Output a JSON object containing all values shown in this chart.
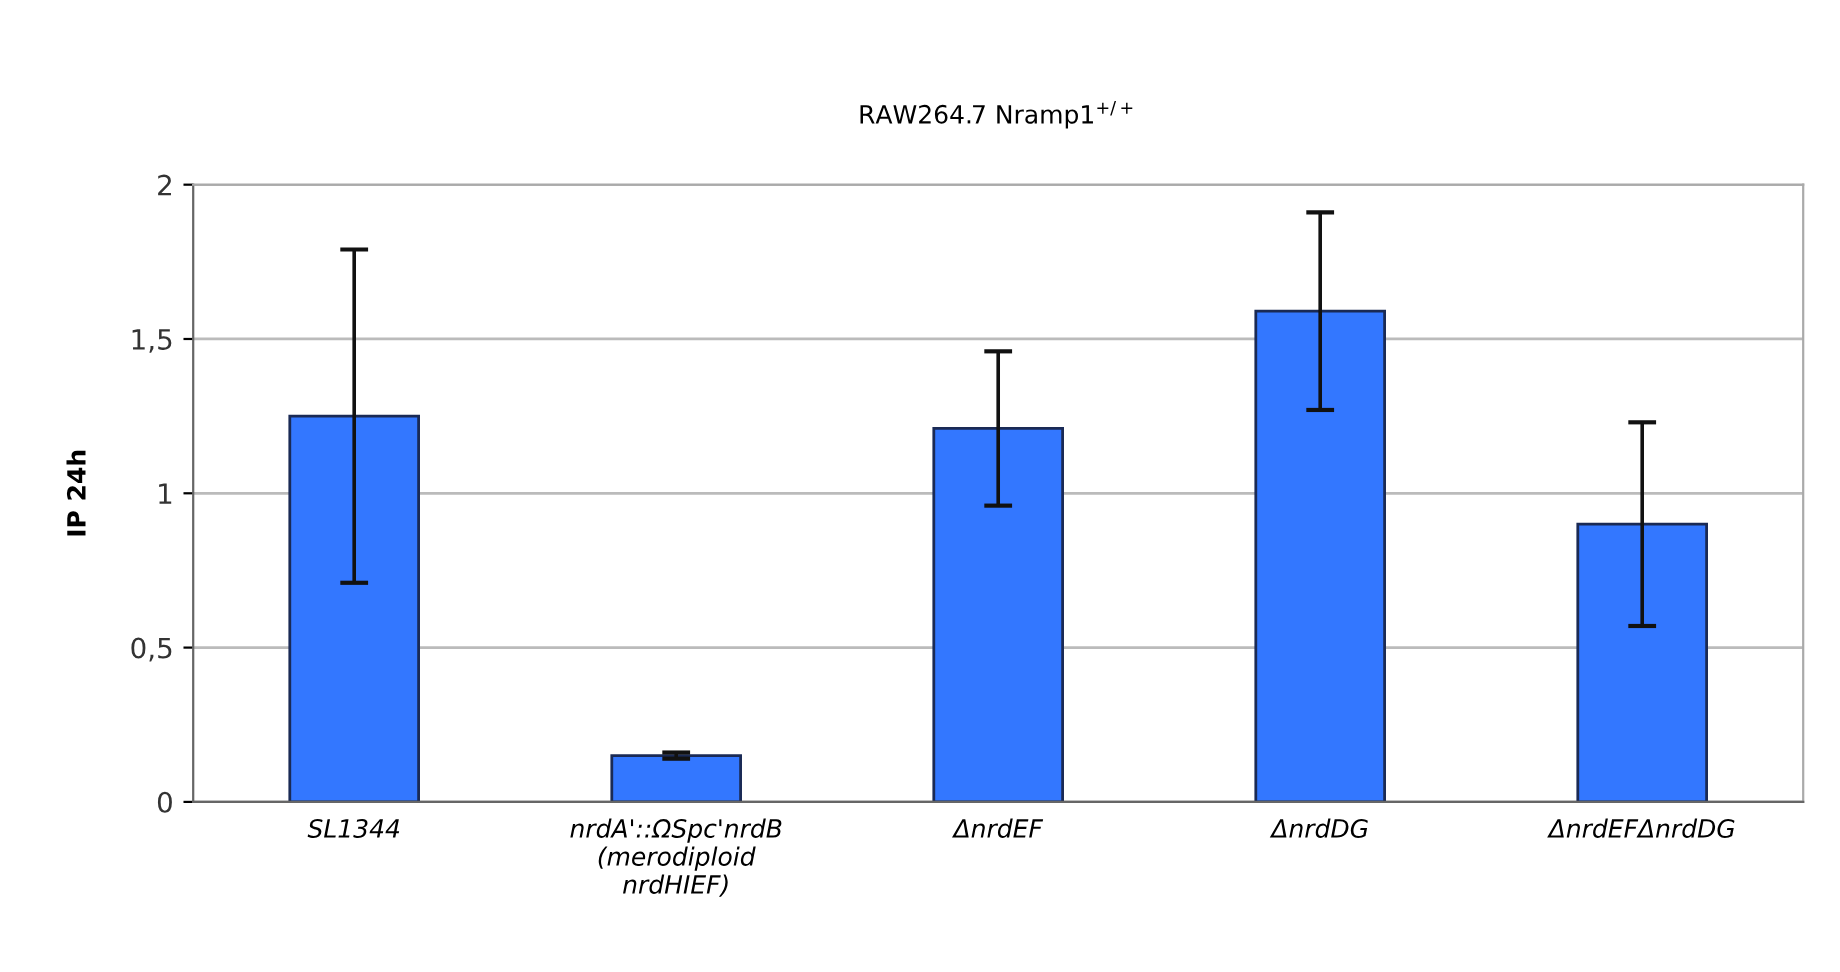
{
  "chart_data": {
    "type": "bar",
    "title": "RAW264.7 Nramp1$^{+/+}$",
    "ylabel": "IP 24h",
    "categories": [
      "SL1344",
      "nrdA'::ΩSpc'nrdB\n(merodiploid\nnrdHIEF)",
      "ΔnrdEF",
      "ΔnrdDG",
      "ΔnrdEFΔnrdDG"
    ],
    "values": [
      1.25,
      0.15,
      1.21,
      1.59,
      0.9
    ],
    "errors": [
      0.54,
      0.01,
      0.25,
      0.32,
      0.33
    ],
    "color": "#3377ff",
    "ylim": [
      0,
      2
    ],
    "yticks": [
      0,
      {
        "value": 0.5,
        "label": "0,5"
      },
      1,
      {
        "value": 1.5,
        "label": "1,5"
      },
      2
    ],
    "grid": "y"
  }
}
